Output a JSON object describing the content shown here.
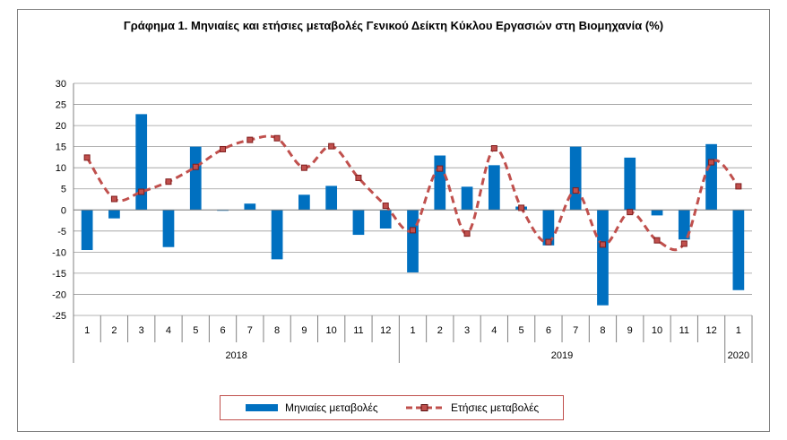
{
  "chart_data": {
    "type": "bar",
    "title": "Γράφημα 1. Μηνιαίες και ετήσιες μεταβολές  Γενικού Δείκτη Κύκλου Εργασιών στη Βιομηχανία (%)",
    "categories": [
      "1",
      "2",
      "3",
      "4",
      "5",
      "6",
      "7",
      "8",
      "9",
      "10",
      "11",
      "12",
      "1",
      "2",
      "3",
      "4",
      "5",
      "6",
      "7",
      "8",
      "9",
      "10",
      "11",
      "12",
      "1"
    ],
    "year_groups": [
      {
        "label": "2018",
        "count": 12
      },
      {
        "label": "2019",
        "count": 12
      },
      {
        "label": "2020",
        "count": 1
      }
    ],
    "ylim": [
      -25,
      30
    ],
    "yticks": [
      -25,
      -20,
      -15,
      -10,
      -5,
      0,
      5,
      10,
      15,
      20,
      25,
      30
    ],
    "grid": true,
    "legend_position": "bottom",
    "series": [
      {
        "name": "Μηνιαίες μεταβολές",
        "type": "bar",
        "color": "#0070c0",
        "values": [
          -9.5,
          -2.0,
          22.7,
          -8.8,
          15.0,
          -0.2,
          1.5,
          -11.7,
          3.6,
          5.7,
          -5.9,
          -4.4,
          -14.8,
          12.9,
          5.5,
          10.6,
          0.8,
          -8.4,
          15.0,
          -22.6,
          12.4,
          -1.3,
          -7.0,
          15.6,
          -19.0
        ]
      },
      {
        "name": "Ετήσιες μεταβολές",
        "type": "line",
        "color": "#c0504d",
        "marker_color": "#7f1d1d",
        "values": [
          12.4,
          2.6,
          4.3,
          6.7,
          10.2,
          14.4,
          16.6,
          17.0,
          10.0,
          15.1,
          7.6,
          1.0,
          -4.8,
          9.8,
          -5.6,
          14.6,
          0.5,
          -7.6,
          4.6,
          -8.2,
          -0.5,
          -7.2,
          -8.0,
          11.3,
          5.6
        ]
      }
    ]
  }
}
